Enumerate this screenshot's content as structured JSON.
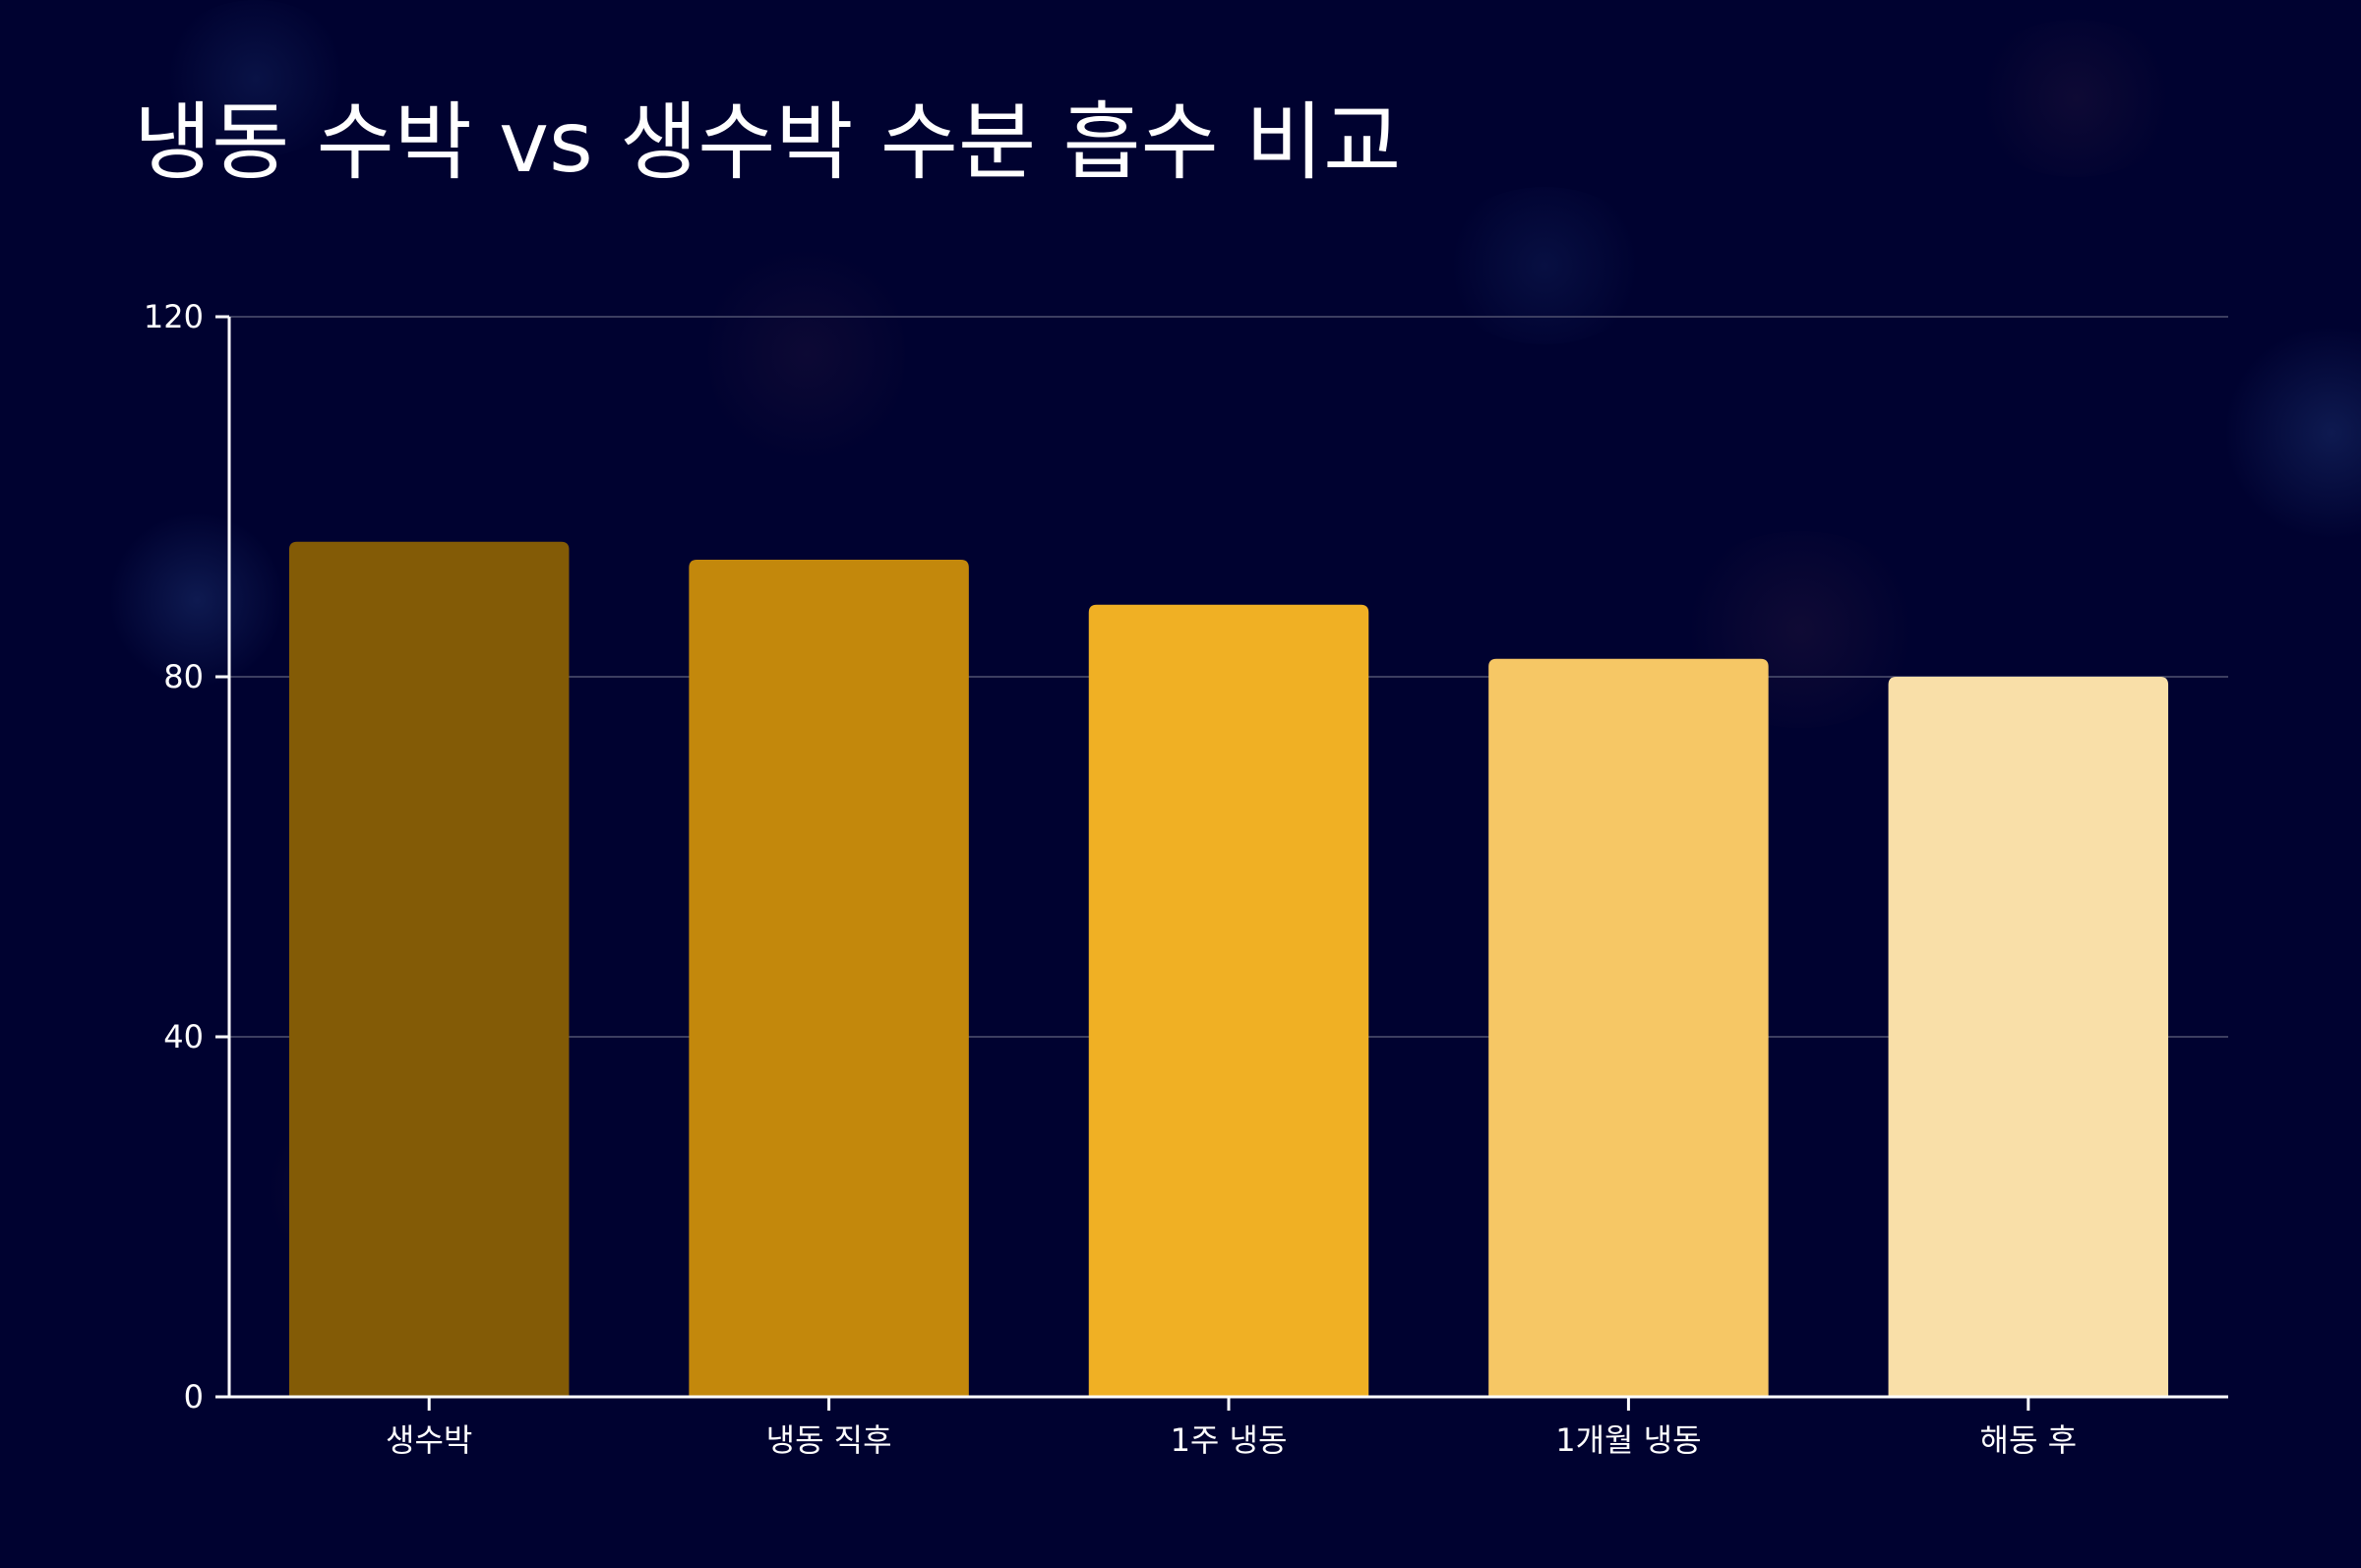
{
  "chart_data": {
    "type": "bar",
    "title": "냉동 수박 vs 생수박 수분 흡수 비교",
    "xlabel": "",
    "ylabel": "",
    "categories": [
      "생수박",
      "냉동 직후",
      "1주 냉동",
      "1개월 냉동",
      "해동 후"
    ],
    "values": [
      95,
      93,
      88,
      82,
      80
    ],
    "ylim": [
      0,
      120
    ],
    "yticks": [
      0,
      40,
      80,
      120
    ],
    "grid": true,
    "legend": "none",
    "colors": [
      "#835b06",
      "#c3880c",
      "#f0b024",
      "#f6c765",
      "#f9dfa8"
    ]
  },
  "style": {
    "background": "#000230",
    "text_color": "#ffffff",
    "grid_color": "#3c3e60"
  }
}
